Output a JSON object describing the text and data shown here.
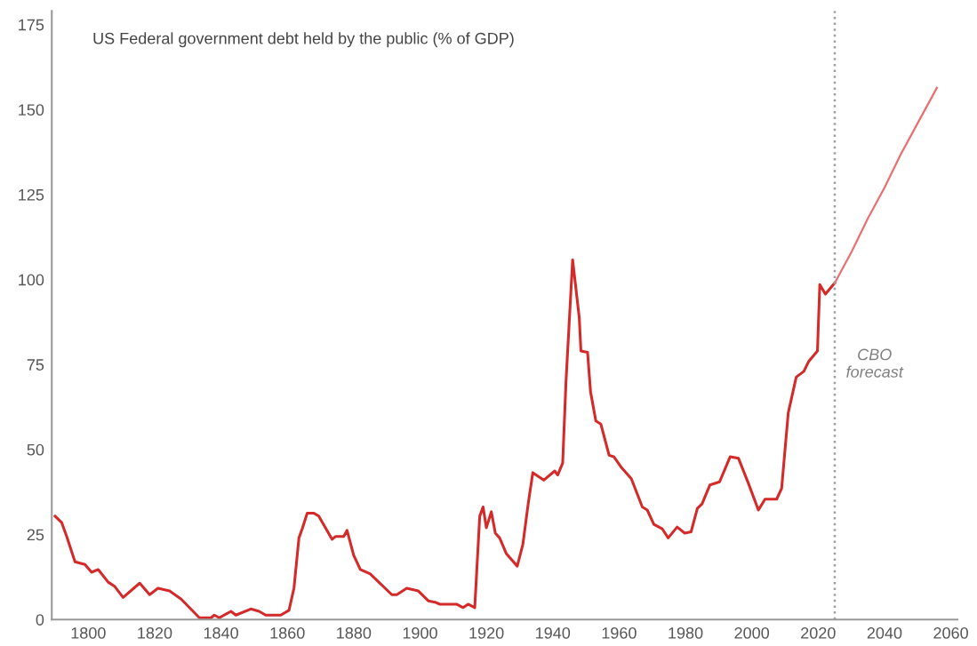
{
  "chart_data": {
    "type": "line",
    "title": "US Federal government debt held by the public (% of GDP)",
    "xlim": [
      1789,
      2062
    ],
    "xticks": [
      1800,
      1820,
      1840,
      1860,
      1880,
      1900,
      1920,
      1940,
      1960,
      1980,
      2000,
      2020,
      2040,
      2060
    ],
    "ylim": [
      0,
      179
    ],
    "yticks": [
      0,
      25,
      50,
      75,
      100,
      125,
      150,
      175
    ],
    "grid": false,
    "legend": false,
    "line_style": "solid",
    "marker": "none",
    "series": [
      {
        "color": "#d42a2a",
        "x": [
          1790,
          1792,
          1793.5,
          1796,
          1799,
          1801,
          1803,
          1806,
          1808,
          1810.5,
          1815.5,
          1818.5,
          1821,
          1824.5,
          1828,
          1833.5,
          1837,
          1838,
          1839.5,
          1843,
          1844.5,
          1849,
          1851.5,
          1853.5,
          1858,
          1860.5,
          1862,
          1863.5,
          1864.5,
          1866,
          1868,
          1869.5,
          1873.5,
          1874.5,
          1877,
          1878,
          1880,
          1882,
          1885,
          1891.5,
          1893,
          1896,
          1899.5,
          1902.5,
          1904.5,
          1906,
          1911,
          1913,
          1914.5,
          1916.5,
          1918,
          1919,
          1920,
          1921.5,
          1922.7,
          1924,
          1926,
          1929.3,
          1931,
          1932.6,
          1934,
          1937.3,
          1940.6,
          1941.5,
          1943,
          1944,
          1946,
          1948,
          1948.5,
          1950.5,
          1951.4,
          1953,
          1954.5,
          1957,
          1958.4,
          1960.8,
          1963.7,
          1967,
          1968.5,
          1970.5,
          1973,
          1974.8,
          1977.5,
          1979.8,
          1981.7,
          1983.6,
          1985,
          1987.4,
          1990.3,
          1993.5,
          1996,
          1999,
          2002,
          2004,
          2007.5,
          2009,
          2011,
          2013.4,
          2015.7,
          2017.2,
          2019.8,
          2020.5,
          2022.2,
          2025
        ],
        "values": [
          30.4,
          28.5,
          24.4,
          17,
          16.2,
          13.9,
          14.7,
          11,
          9.7,
          6.5,
          10.7,
          7.3,
          9.2,
          8.4,
          6,
          0.5,
          0.5,
          1.3,
          0.5,
          2.4,
          1.3,
          3.1,
          2.4,
          1.3,
          1.3,
          2.7,
          9.2,
          24,
          26.7,
          31.3,
          31.3,
          30.4,
          23.6,
          24.4,
          24.4,
          26.2,
          18.9,
          14.7,
          13.4,
          7.3,
          7.3,
          9.2,
          8.4,
          5.5,
          5.1,
          4.5,
          4.5,
          3.5,
          4.5,
          3.5,
          30.4,
          33.1,
          27,
          31.7,
          25.4,
          24,
          19.4,
          15.7,
          22.1,
          34,
          43.2,
          41,
          43.7,
          42.5,
          46,
          70,
          105.8,
          88.8,
          79,
          78.6,
          67,
          58.4,
          57.5,
          48.3,
          47.9,
          44.6,
          41.4,
          33.1,
          32.2,
          28,
          26.7,
          24,
          27.2,
          25.4,
          25.8,
          32.7,
          34,
          39.6,
          40.5,
          47.9,
          47.4,
          40,
          32.2,
          35.4,
          35.4,
          38.6,
          60.8,
          71.3,
          73,
          76,
          79,
          98.5,
          95.7,
          99
        ]
      },
      {
        "color": "#e87070",
        "x": [
          2025,
          2030,
          2035,
          2040,
          2045,
          2050,
          2055.8
        ],
        "values": [
          99,
          108,
          118,
          127,
          137,
          146,
          156.4
        ]
      }
    ],
    "ref_lines": [
      {
        "axis": "x",
        "value": 2025,
        "label": "CBO\nforecast",
        "color": "#a0a0a0",
        "line_style": "dotted"
      }
    ]
  }
}
